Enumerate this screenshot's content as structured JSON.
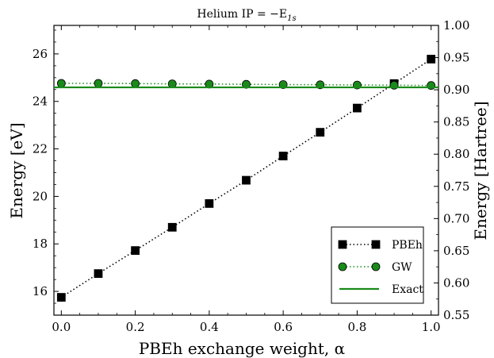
{
  "chart_data": {
    "type": "line",
    "title": "Helium IP = −E",
    "title_subscript": "1s",
    "xlabel": "PBEh exchange weight, α",
    "ylabel": "Energy [eV]",
    "ylabel_right": "Energy [Hartree]",
    "xlim": [
      -0.02,
      1.02
    ],
    "ylim": [
      15.0,
      27.2
    ],
    "ylim_right_hartree": [
      0.55,
      1.0
    ],
    "x_ticks": [
      "0.0",
      "0.2",
      "0.4",
      "0.6",
      "0.8",
      "1.0"
    ],
    "y_ticks": [
      "16",
      "18",
      "20",
      "22",
      "24",
      "26"
    ],
    "y_ticks_right": [
      "0.55",
      "0.60",
      "0.65",
      "0.70",
      "0.75",
      "0.80",
      "0.85",
      "0.90",
      "0.95",
      "1.00"
    ],
    "grid": false,
    "legend_position": "bottom-right",
    "x": [
      0.0,
      0.1,
      0.2,
      0.3,
      0.4,
      0.5,
      0.6,
      0.7,
      0.8,
      0.9,
      1.0
    ],
    "series": [
      {
        "name": "PBEh",
        "color": "#000000",
        "marker": "square",
        "line_style": "dotted",
        "values": [
          15.75,
          16.75,
          17.72,
          18.7,
          19.7,
          20.68,
          21.7,
          22.7,
          23.72,
          24.75,
          25.78
        ]
      },
      {
        "name": "GW",
        "color": "#1a8a1a",
        "marker": "circle",
        "line_style": "dotted",
        "values": [
          24.76,
          24.76,
          24.75,
          24.74,
          24.73,
          24.72,
          24.71,
          24.7,
          24.69,
          24.68,
          24.67
        ]
      },
      {
        "name": "Exact",
        "color": "#1a8a1a",
        "marker": "none",
        "line_style": "solid",
        "values": [
          24.59,
          24.59,
          24.59,
          24.59,
          24.59,
          24.59,
          24.59,
          24.59,
          24.59,
          24.59,
          24.59
        ]
      }
    ]
  }
}
